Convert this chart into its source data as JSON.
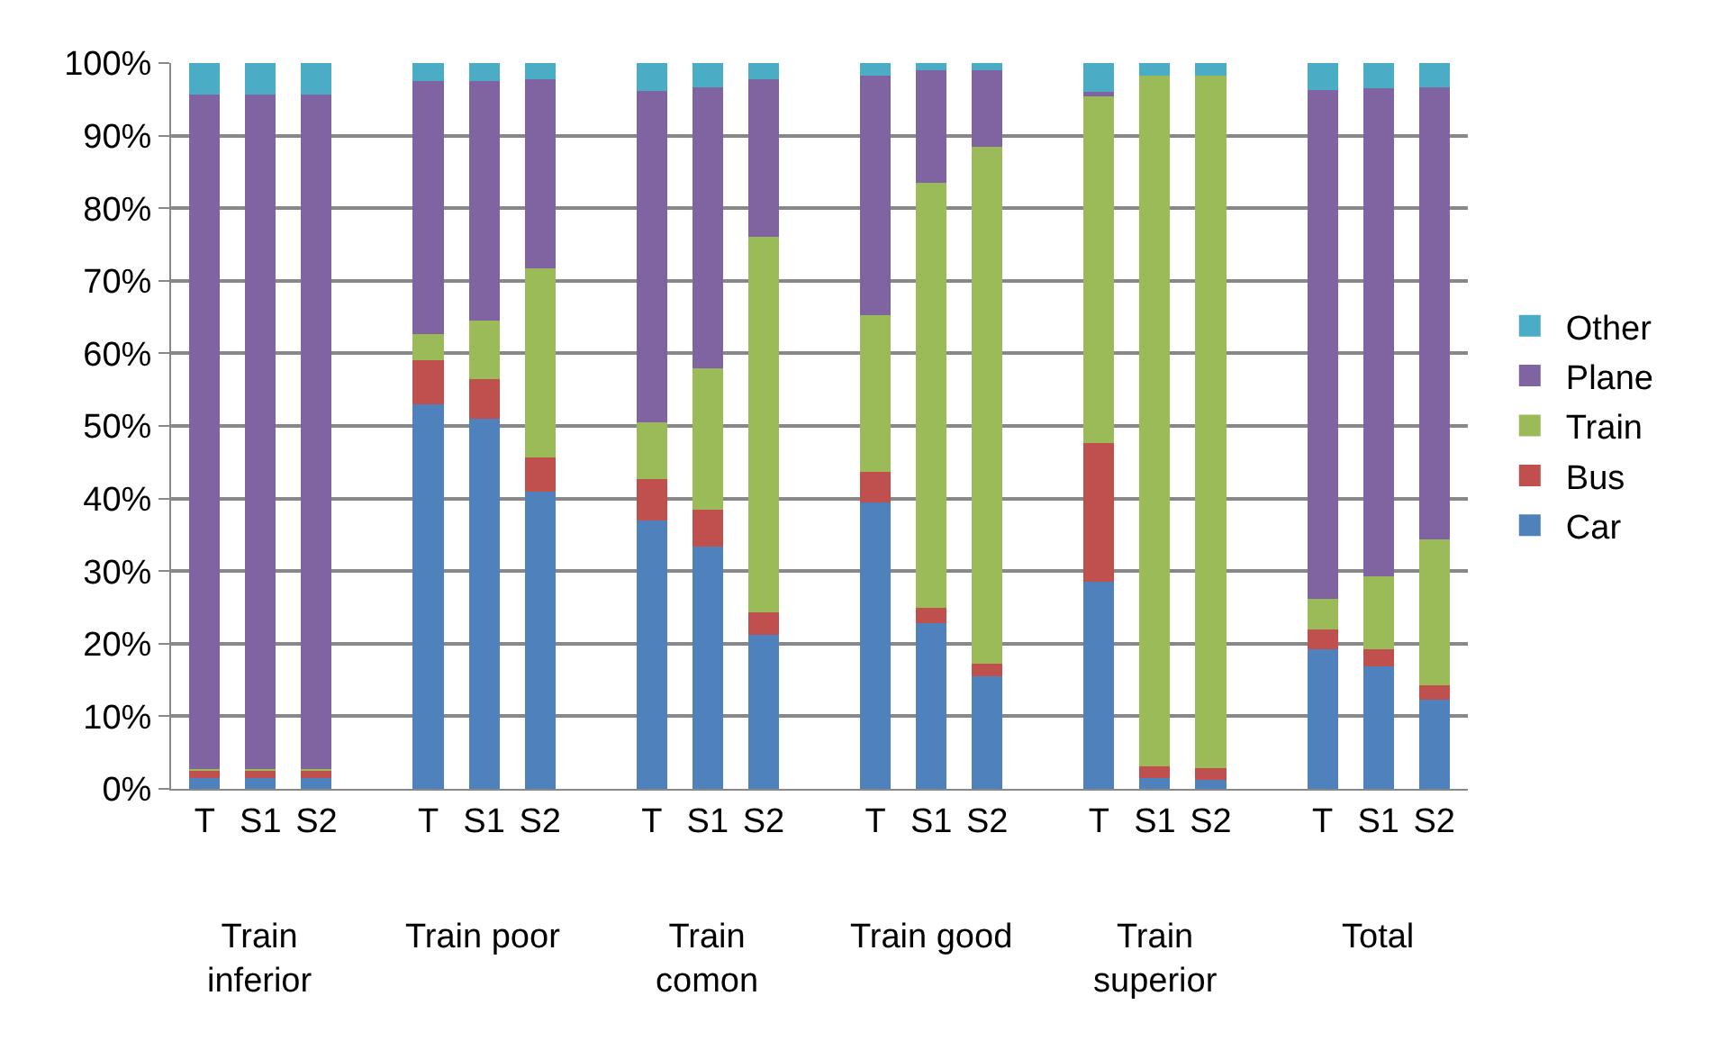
{
  "chart_data": {
    "type": "bar",
    "stacked": true,
    "grid": "y",
    "legend": "right",
    "categories": [
      "T",
      "S1",
      "S2",
      "T",
      "S1",
      "S2",
      "T",
      "S1",
      "S2",
      "T",
      "S1",
      "S2",
      "T",
      "S1",
      "S2",
      "T",
      "S1",
      "S2"
    ],
    "series": [
      {
        "name": "Car",
        "color": "#4f81bd",
        "values": [
          1.5,
          1.5,
          1.5,
          53,
          51,
          41,
          37,
          33.4,
          21.2,
          39.5,
          22.8,
          15.5,
          28.5,
          1.5,
          1.2,
          19.2,
          16.9,
          12.3
        ]
      },
      {
        "name": "Bus",
        "color": "#c0504d",
        "values": [
          1,
          1,
          1,
          6,
          5.5,
          4.7,
          5.7,
          5.1,
          3.1,
          4.2,
          2.1,
          1.8,
          19.1,
          1.6,
          1.6,
          2.8,
          2.3,
          2
        ]
      },
      {
        "name": "Train",
        "color": "#9bbb59",
        "values": [
          0.2,
          0.2,
          0.2,
          3.7,
          8,
          26,
          7.8,
          19.5,
          51.7,
          21.6,
          58.6,
          71.2,
          47.8,
          95.2,
          95.5,
          4.2,
          10.1,
          20.1
        ]
      },
      {
        "name": "Plane",
        "color": "#8064a2",
        "values": [
          93,
          93,
          93,
          34.8,
          33,
          26.1,
          45.7,
          38.7,
          21.8,
          33,
          15.5,
          10.5,
          0.6,
          0,
          0,
          70.1,
          67.2,
          62.3
        ]
      },
      {
        "name": "Other",
        "color": "#4bacc6",
        "values": [
          4.3,
          4.3,
          4.3,
          2.5,
          2.5,
          2.2,
          3.8,
          3.3,
          2.2,
          1.7,
          1,
          1,
          4,
          1.7,
          1.7,
          3.7,
          3.5,
          3.3
        ]
      }
    ],
    "ylim": [
      0,
      100
    ],
    "yticks": [
      {
        "value": 0,
        "label": "0%"
      },
      {
        "value": 10,
        "label": "10%"
      },
      {
        "value": 20,
        "label": "20%"
      },
      {
        "value": 30,
        "label": "30%"
      },
      {
        "value": 40,
        "label": "40%"
      },
      {
        "value": 50,
        "label": "50%"
      },
      {
        "value": 60,
        "label": "60%"
      },
      {
        "value": 70,
        "label": "70%"
      },
      {
        "value": 80,
        "label": "80%"
      },
      {
        "value": 90,
        "label": "90%"
      },
      {
        "value": 100,
        "label": "100%"
      }
    ],
    "annotations": [
      "Train inferior",
      "Train poor",
      "Train comon",
      "Train good",
      "Train superior",
      "Total"
    ]
  }
}
